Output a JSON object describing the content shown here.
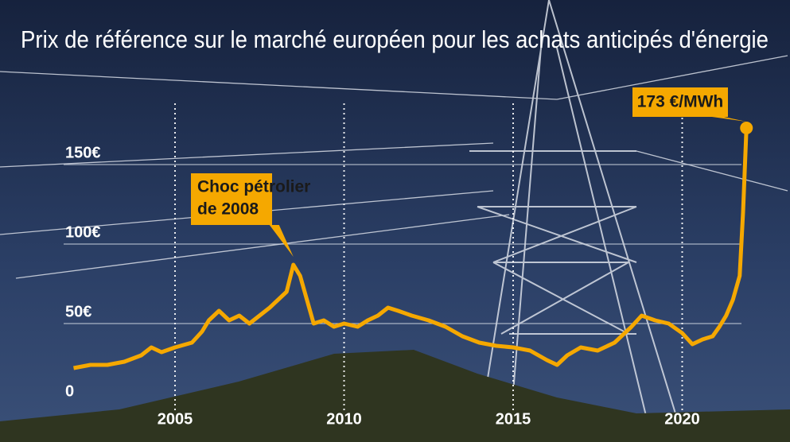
{
  "chart_data": {
    "type": "line",
    "title": "Prix de référence sur le marché européen pour les achats anticipés d'énergie",
    "annotation": [
      "Choc pétrolier",
      "de 2008"
    ],
    "x": [
      2002.0,
      2002.5,
      2003.0,
      2003.5,
      2004.0,
      2004.3,
      2004.6,
      2005.0,
      2005.5,
      2005.8,
      2006.0,
      2006.3,
      2006.6,
      2006.9,
      2007.2,
      2007.5,
      2007.8,
      2008.0,
      2008.3,
      2008.5,
      2008.7,
      2008.9,
      2009.1,
      2009.4,
      2009.7,
      2010.0,
      2010.4,
      2010.7,
      2011.0,
      2011.3,
      2011.6,
      2012.0,
      2012.5,
      2013.0,
      2013.5,
      2014.0,
      2014.5,
      2015.0,
      2015.5,
      2016.0,
      2016.3,
      2016.6,
      2017.0,
      2017.5,
      2018.0,
      2018.5,
      2018.8,
      2019.2,
      2019.6,
      2020.0,
      2020.3,
      2020.6,
      2020.9,
      2021.1,
      2021.3,
      2021.5,
      2021.7,
      2021.8,
      2021.9
    ],
    "values": [
      22,
      24,
      24,
      26,
      30,
      35,
      32,
      35,
      38,
      45,
      52,
      58,
      52,
      55,
      50,
      55,
      60,
      64,
      70,
      87,
      80,
      65,
      50,
      52,
      48,
      50,
      48,
      52,
      55,
      60,
      58,
      55,
      52,
      48,
      42,
      38,
      36,
      35,
      33,
      27,
      24,
      30,
      35,
      33,
      38,
      48,
      55,
      52,
      50,
      44,
      37,
      40,
      42,
      48,
      55,
      65,
      80,
      120,
      173
    ],
    "value_labels": [
      null,
      null,
      null,
      null,
      null,
      null,
      null,
      null,
      null,
      null,
      null,
      null,
      null,
      null,
      null,
      null,
      null,
      null,
      null,
      null,
      null,
      null,
      null,
      null,
      null,
      null,
      null,
      null,
      null,
      null,
      null,
      null,
      null,
      null,
      null,
      null,
      null,
      null,
      null,
      null,
      null,
      null,
      null,
      null,
      null,
      null,
      null,
      null,
      null,
      null,
      null,
      null,
      null,
      null,
      null,
      null,
      null,
      null,
      "173 €/MWh"
    ],
    "color": "#f5a800",
    "xlim": [
      2001.5,
      2022.5
    ],
    "xticks": [
      2005,
      2010,
      2015,
      2020
    ],
    "ylim": [
      0,
      175
    ],
    "yticks": [
      0,
      {
        "value": 50,
        "label": "50€"
      },
      {
        "value": 100,
        "label": "100€"
      },
      {
        "value": 150,
        "label": "150€"
      }
    ],
    "grid": true
  }
}
